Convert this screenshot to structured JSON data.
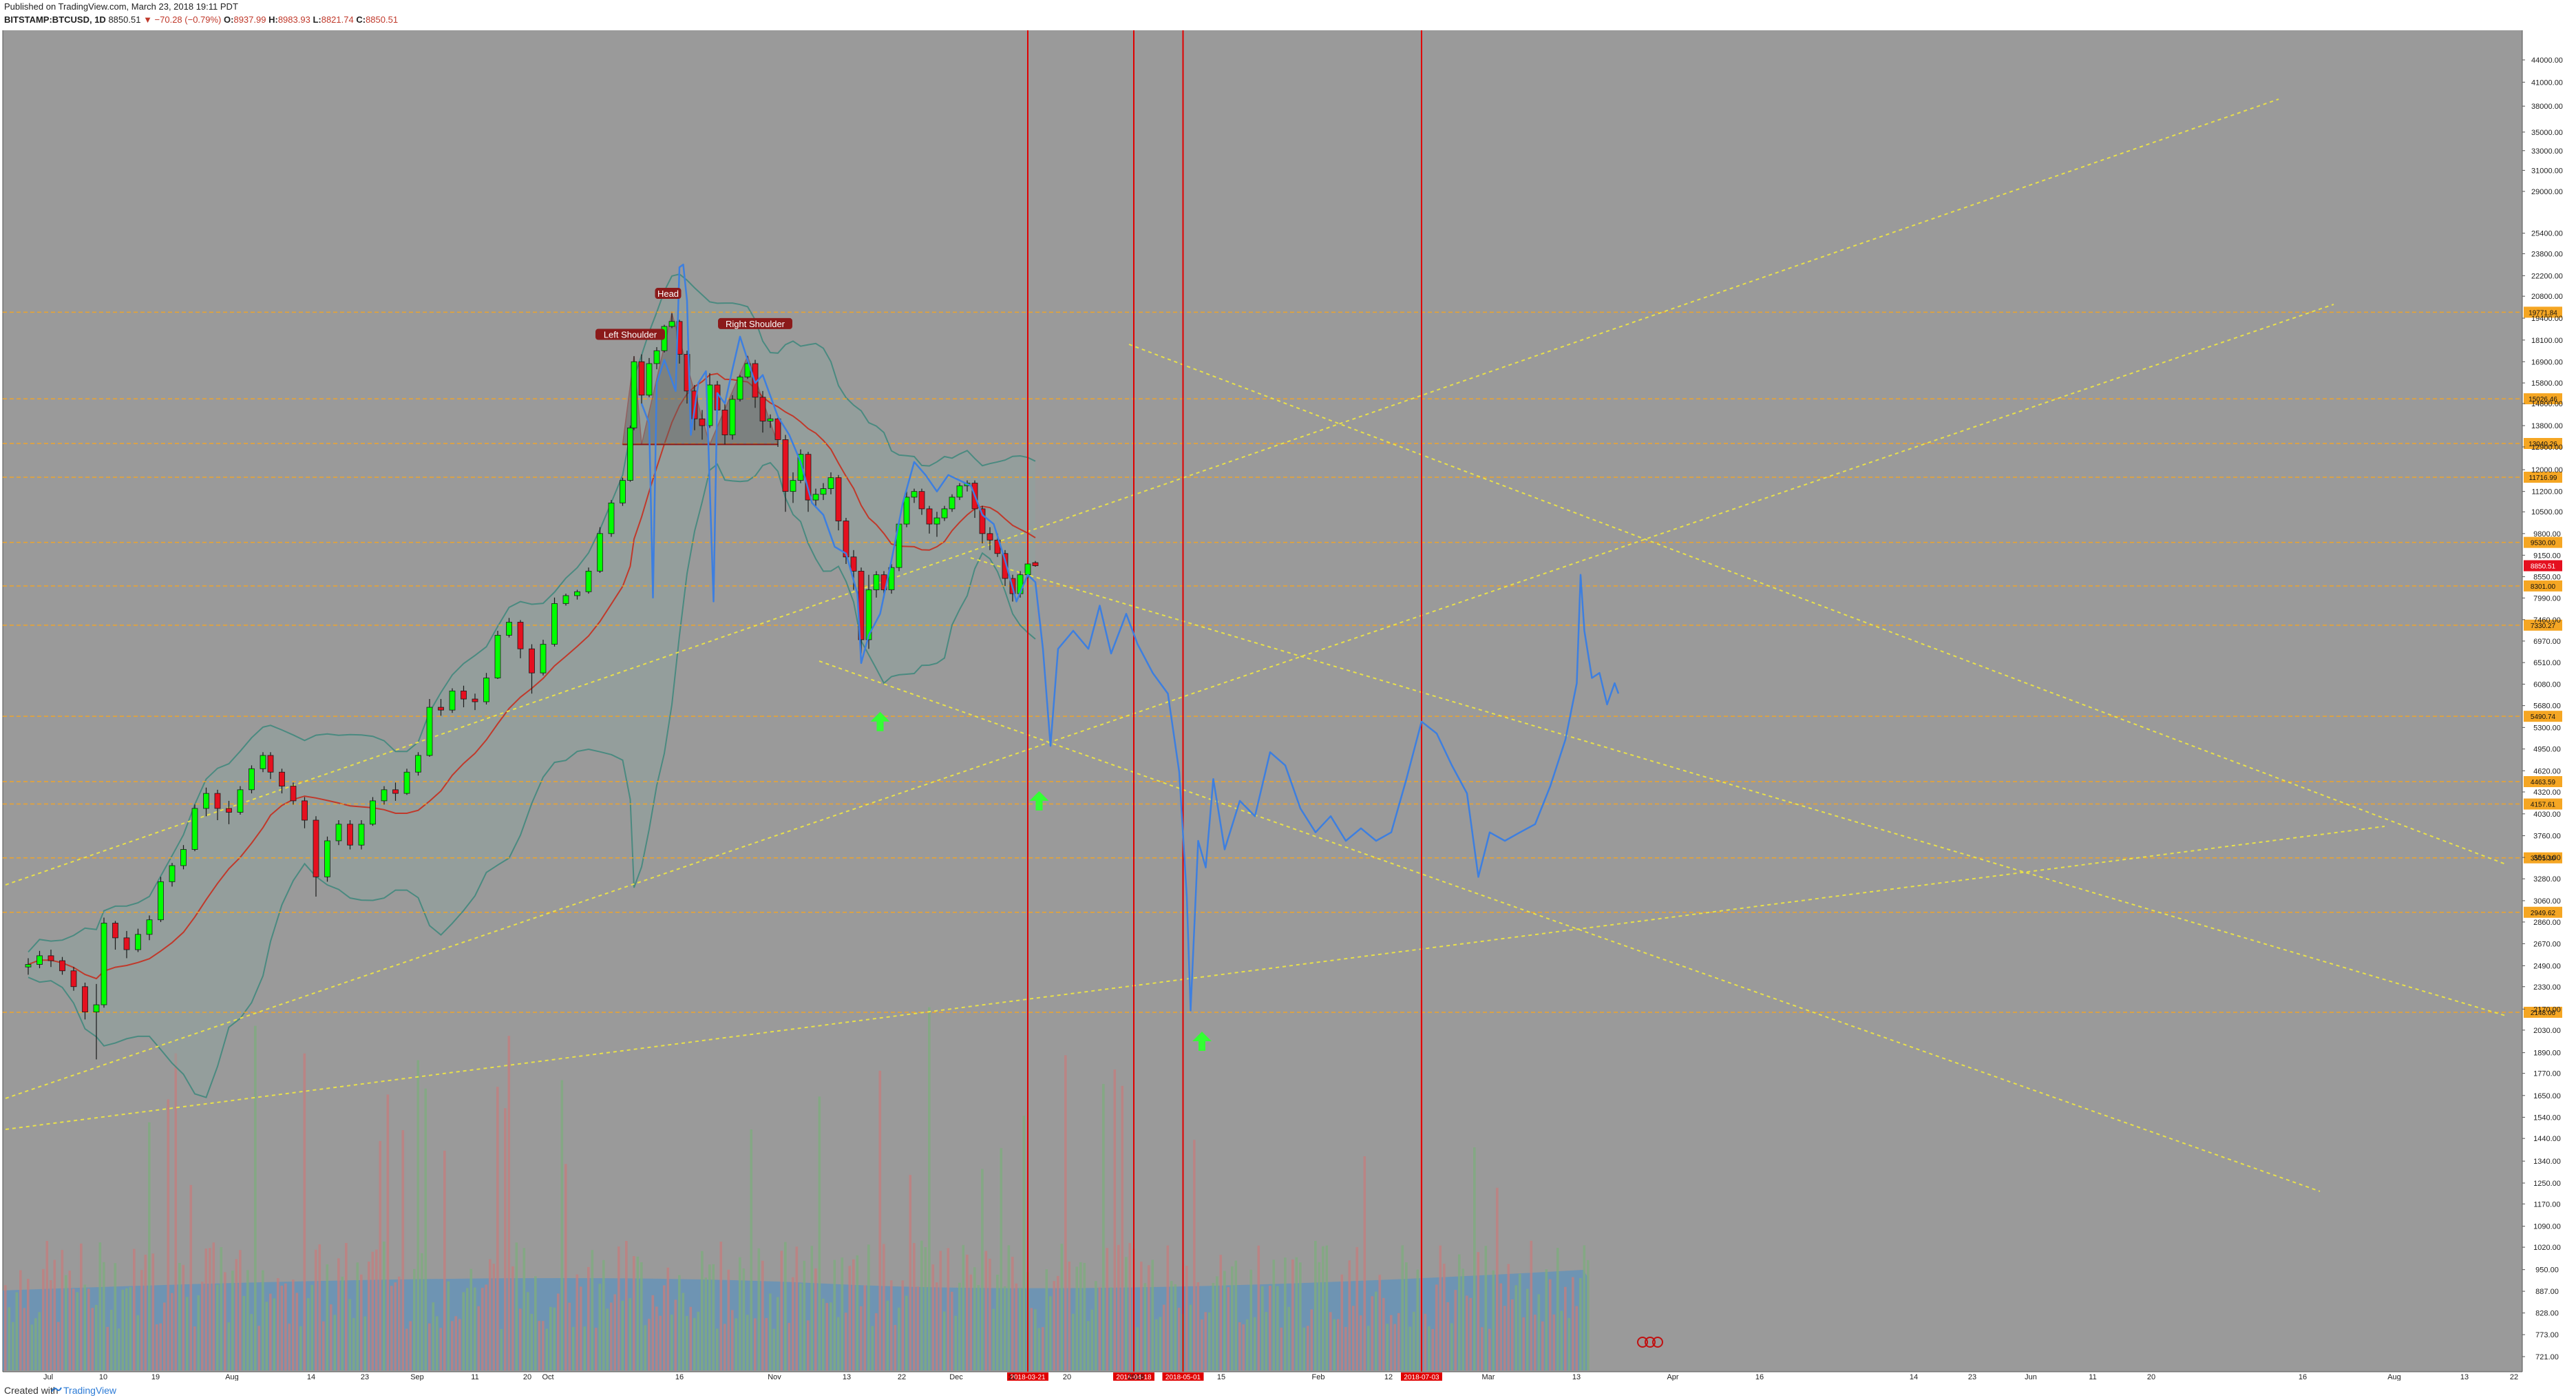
{
  "header": {
    "published": "Published on TradingView.com, March 23, 2018 19:11 PDT",
    "symbol": "BITSTAMP:BTCUSD, 1D",
    "last": "8850.51",
    "change": "▼ −70.28 (−0.79%)",
    "o_label": "O:",
    "o_value": "8937.99",
    "h_label": "H:",
    "h_value": "8983.93",
    "l_label": "L:",
    "l_value": "8821.74",
    "c_label": "C:",
    "c_value": "8850.51"
  },
  "footer": {
    "created_with": "Created with",
    "brand": "TradingView"
  },
  "colors": {
    "plot_bg": "#9a9a9a",
    "up": "#00ff00",
    "down": "#e5101f",
    "projection": "#3d7fe0",
    "horizontal_levels": "#f5a623",
    "trend_lines": "#e8e04a",
    "vertical_lines": "#e00000",
    "bollinger": "#4a8a80",
    "ma": "#c0392b",
    "volume_ma": "#4a90c8"
  },
  "chart_data": {
    "type": "candlestick",
    "y_axis_scale": "log",
    "y_axis_ticks": [
      "44000.00",
      "41000.00",
      "38000.00",
      "35000.00",
      "33000.00",
      "31000.00",
      "29000.00",
      "25400.00",
      "23800.00",
      "22200.00",
      "20800.00",
      "19400.00",
      "18100.00",
      "16900.00",
      "15800.00",
      "14800.00",
      "13800.00",
      "12900.00",
      "12000.00",
      "11200.00",
      "10500.00",
      "9800.00",
      "9150.00",
      "8550.00",
      "7990.00",
      "7460.00",
      "6970.00",
      "6510.00",
      "6080.00",
      "5680.00",
      "5300.00",
      "4950.00",
      "4620.00",
      "4320.00",
      "4030.00",
      "3760.00",
      "3510.00",
      "3280.00",
      "3060.00",
      "2860.00",
      "2670.00",
      "2490.00",
      "2330.00",
      "2170.00",
      "2030.00",
      "1890.00",
      "1770.00",
      "1650.00",
      "1540.00",
      "1440.00",
      "1340.00",
      "1250.00",
      "1170.00",
      "1090.00",
      "1020.00",
      "950.00",
      "887.00",
      "828.00",
      "773.00",
      "721.00"
    ],
    "price_levels": [
      {
        "price": 19771.84,
        "label": "19771.84"
      },
      {
        "price": 15026.46,
        "label": "15026.46"
      },
      {
        "price": 13040.26,
        "label": "13040.26"
      },
      {
        "price": 11716.99,
        "label": "11716.99"
      },
      {
        "price": 9530.0,
        "label": "9530.00"
      },
      {
        "price": 8301.0,
        "label": "8301.00"
      },
      {
        "price": 7330.27,
        "label": "7330.27"
      },
      {
        "price": 5490.74,
        "label": "5490.74"
      },
      {
        "price": 4463.59,
        "label": "4463.59"
      },
      {
        "price": 4157.61,
        "label": "4157.61"
      },
      {
        "price": 3505.3,
        "label": "3505.30"
      },
      {
        "price": 2949.62,
        "label": "2949.62"
      },
      {
        "price": 2148.06,
        "label": "2148.06"
      }
    ],
    "current_price": {
      "price": 8850.51,
      "label": "8850.51"
    },
    "x_axis_ticks": [
      "Jul",
      "10",
      "19",
      "Aug",
      "14",
      "23",
      "Sep",
      "11",
      "20",
      "Oct",
      "16",
      "Nov",
      "13",
      "22",
      "Dec",
      "11",
      "20",
      "2018",
      "15",
      "Feb",
      "12",
      "Mar",
      "13",
      "Apr",
      "16",
      "14",
      "23",
      "Jun",
      "11",
      "20",
      "16",
      "Aug",
      "13",
      "22"
    ],
    "vertical_markers": [
      {
        "date": "2018-03-21",
        "label": "2018-03-21"
      },
      {
        "date": "2018-04-18",
        "label": "2018-04-18"
      },
      {
        "date": "2018-05-01",
        "label": "2018-05-01"
      },
      {
        "date": "2018-07-03",
        "label": "2018-07-03"
      }
    ],
    "annotations": [
      {
        "label": "Left Shoulder",
        "price": 17300
      },
      {
        "label": "Head",
        "price": 19700
      },
      {
        "label": "Right Shoulder",
        "price": 17900
      }
    ],
    "candles": [
      [
        "2017-06-30",
        2480,
        2550,
        2420,
        2500
      ],
      [
        "2017-07-03",
        2500,
        2610,
        2470,
        2570
      ],
      [
        "2017-07-06",
        2570,
        2620,
        2480,
        2530
      ],
      [
        "2017-07-09",
        2530,
        2560,
        2420,
        2450
      ],
      [
        "2017-07-12",
        2450,
        2480,
        2300,
        2330
      ],
      [
        "2017-07-15",
        2330,
        2360,
        2100,
        2150
      ],
      [
        "2017-07-18",
        2150,
        2350,
        1850,
        2200
      ],
      [
        "2017-07-20",
        2200,
        2900,
        2180,
        2850
      ],
      [
        "2017-07-23",
        2850,
        2870,
        2620,
        2720
      ],
      [
        "2017-07-26",
        2720,
        2780,
        2550,
        2620
      ],
      [
        "2017-07-29",
        2620,
        2800,
        2600,
        2750
      ],
      [
        "2017-08-01",
        2750,
        2920,
        2700,
        2880
      ],
      [
        "2017-08-04",
        2880,
        3300,
        2860,
        3250
      ],
      [
        "2017-08-07",
        3250,
        3450,
        3200,
        3420
      ],
      [
        "2017-08-10",
        3420,
        3650,
        3380,
        3600
      ],
      [
        "2017-08-13",
        3600,
        4150,
        3580,
        4100
      ],
      [
        "2017-08-16",
        4100,
        4380,
        4000,
        4300
      ],
      [
        "2017-08-19",
        4300,
        4350,
        3950,
        4100
      ],
      [
        "2017-08-22",
        4100,
        4200,
        3900,
        4050
      ],
      [
        "2017-08-25",
        4050,
        4400,
        4020,
        4350
      ],
      [
        "2017-08-28",
        4350,
        4700,
        4300,
        4650
      ],
      [
        "2017-08-31",
        4650,
        4900,
        4600,
        4850
      ],
      [
        "2017-09-02",
        4850,
        4900,
        4500,
        4600
      ],
      [
        "2017-09-05",
        4600,
        4650,
        4300,
        4400
      ],
      [
        "2017-09-08",
        4400,
        4450,
        4150,
        4200
      ],
      [
        "2017-09-11",
        4200,
        4250,
        3850,
        3950
      ],
      [
        "2017-09-14",
        3950,
        4000,
        3100,
        3300
      ],
      [
        "2017-09-17",
        3300,
        3750,
        3250,
        3700
      ],
      [
        "2017-09-20",
        3700,
        3950,
        3650,
        3900
      ],
      [
        "2017-09-23",
        3900,
        3950,
        3600,
        3650
      ],
      [
        "2017-09-26",
        3650,
        3950,
        3600,
        3900
      ],
      [
        "2017-09-29",
        3900,
        4250,
        3880,
        4200
      ],
      [
        "2017-10-02",
        4200,
        4400,
        4150,
        4350
      ],
      [
        "2017-10-05",
        4350,
        4450,
        4200,
        4300
      ],
      [
        "2017-10-08",
        4300,
        4650,
        4280,
        4600
      ],
      [
        "2017-10-11",
        4600,
        4900,
        4550,
        4850
      ],
      [
        "2017-10-14",
        4850,
        5800,
        4830,
        5650
      ],
      [
        "2017-10-17",
        5650,
        5800,
        5500,
        5600
      ],
      [
        "2017-10-20",
        5600,
        6000,
        5550,
        5950
      ],
      [
        "2017-10-23",
        5950,
        6050,
        5650,
        5800
      ],
      [
        "2017-10-26",
        5800,
        5900,
        5600,
        5750
      ],
      [
        "2017-10-29",
        5750,
        6300,
        5700,
        6200
      ],
      [
        "2017-11-01",
        6200,
        7200,
        6180,
        7100
      ],
      [
        "2017-11-04",
        7100,
        7500,
        7050,
        7400
      ],
      [
        "2017-11-07",
        7400,
        7450,
        6600,
        6800
      ],
      [
        "2017-11-10",
        6800,
        6900,
        5900,
        6300
      ],
      [
        "2017-11-13",
        6300,
        7000,
        6250,
        6900
      ],
      [
        "2017-11-16",
        6900,
        8000,
        6850,
        7850
      ],
      [
        "2017-11-19",
        7850,
        8100,
        7800,
        8050
      ],
      [
        "2017-11-22",
        8050,
        8200,
        7950,
        8150
      ],
      [
        "2017-11-25",
        8150,
        8800,
        8100,
        8700
      ],
      [
        "2017-11-28",
        8700,
        10000,
        8650,
        9800
      ],
      [
        "2017-12-01",
        9800,
        10900,
        9700,
        10800
      ],
      [
        "2017-12-04",
        10800,
        11700,
        10700,
        11600
      ],
      [
        "2017-12-06",
        11600,
        13800,
        11550,
        13700
      ],
      [
        "2017-12-07",
        13700,
        17200,
        13600,
        16900
      ],
      [
        "2017-12-09",
        16900,
        17300,
        14800,
        15200
      ],
      [
        "2017-12-11",
        15200,
        17100,
        15100,
        16800
      ],
      [
        "2017-12-13",
        16800,
        17700,
        16500,
        17500
      ],
      [
        "2017-12-15",
        17500,
        19000,
        17400,
        18900
      ],
      [
        "2017-12-17",
        18900,
        19700,
        18800,
        19200
      ],
      [
        "2017-12-19",
        19200,
        19300,
        16800,
        17300
      ],
      [
        "2017-12-21",
        17300,
        17500,
        14800,
        15400
      ],
      [
        "2017-12-23",
        15400,
        15700,
        13600,
        14100
      ],
      [
        "2017-12-25",
        14100,
        14500,
        13200,
        13800
      ],
      [
        "2017-12-27",
        13800,
        16300,
        13700,
        15700
      ],
      [
        "2017-12-29",
        15700,
        15900,
        14300,
        14500
      ],
      [
        "2017-12-31",
        14500,
        14800,
        13000,
        13400
      ],
      [
        "2018-01-02",
        13400,
        15200,
        13200,
        15000
      ],
      [
        "2018-01-04",
        15000,
        16200,
        14900,
        16100
      ],
      [
        "2018-01-06",
        16100,
        17200,
        16000,
        16800
      ],
      [
        "2018-01-08",
        16800,
        17000,
        14600,
        15100
      ],
      [
        "2018-01-10",
        15100,
        15400,
        13500,
        14000
      ],
      [
        "2018-01-12",
        14000,
        14300,
        13700,
        14100
      ],
      [
        "2018-01-14",
        14100,
        14200,
        12900,
        13200
      ],
      [
        "2018-01-16",
        13200,
        13400,
        10500,
        11200
      ],
      [
        "2018-01-18",
        11200,
        11900,
        10800,
        11600
      ],
      [
        "2018-01-20",
        11600,
        12800,
        11500,
        12600
      ],
      [
        "2018-01-22",
        12600,
        12700,
        10500,
        10900
      ],
      [
        "2018-01-24",
        10900,
        11300,
        10700,
        11100
      ],
      [
        "2018-01-26",
        11100,
        11500,
        10900,
        11300
      ],
      [
        "2018-01-28",
        11300,
        11900,
        11100,
        11700
      ],
      [
        "2018-01-30",
        11700,
        11800,
        9900,
        10200
      ],
      [
        "2018-02-01",
        10200,
        10300,
        8900,
        9100
      ],
      [
        "2018-02-03",
        9100,
        9300,
        8200,
        8700
      ],
      [
        "2018-02-05",
        8700,
        8800,
        6700,
        7000
      ],
      [
        "2018-02-07",
        7000,
        8600,
        6800,
        8200
      ],
      [
        "2018-02-09",
        8200,
        8700,
        8000,
        8600
      ],
      [
        "2018-02-11",
        8600,
        8700,
        8000,
        8200
      ],
      [
        "2018-02-13",
        8200,
        8900,
        8100,
        8800
      ],
      [
        "2018-02-15",
        8800,
        10200,
        8700,
        10100
      ],
      [
        "2018-02-17",
        10100,
        11200,
        10000,
        11000
      ],
      [
        "2018-02-19",
        11000,
        11300,
        10800,
        11200
      ],
      [
        "2018-02-21",
        11200,
        11300,
        10400,
        10600
      ],
      [
        "2018-02-23",
        10600,
        10700,
        9800,
        10100
      ],
      [
        "2018-02-25",
        10100,
        10500,
        9700,
        10300
      ],
      [
        "2018-02-27",
        10300,
        10700,
        10200,
        10600
      ],
      [
        "2018-03-01",
        10600,
        11100,
        10500,
        11000
      ],
      [
        "2018-03-03",
        11000,
        11500,
        10900,
        11400
      ],
      [
        "2018-03-05",
        11400,
        11600,
        11200,
        11500
      ],
      [
        "2018-03-07",
        11500,
        11600,
        10300,
        10600
      ],
      [
        "2018-03-09",
        10600,
        10700,
        9500,
        9800
      ],
      [
        "2018-03-11",
        9800,
        10000,
        9300,
        9600
      ],
      [
        "2018-03-13",
        9600,
        9800,
        9100,
        9200
      ],
      [
        "2018-03-15",
        9200,
        9300,
        8300,
        8500
      ],
      [
        "2018-03-17",
        8500,
        8600,
        7900,
        8100
      ],
      [
        "2018-03-19",
        8100,
        8700,
        8000,
        8600
      ],
      [
        "2018-03-21",
        8600,
        8900,
        8500,
        8900
      ],
      [
        "2018-03-23",
        8937.99,
        8983.93,
        8821.74,
        8850.51
      ]
    ],
    "projection_path": [
      [
        "2017-12-09",
        14800
      ],
      [
        "2017-12-11",
        13900
      ],
      [
        "2017-12-12",
        8000
      ],
      [
        "2017-12-13",
        15800
      ],
      [
        "2017-12-15",
        17000
      ],
      [
        "2017-12-18",
        15400
      ],
      [
        "2017-12-19",
        22800
      ],
      [
        "2017-12-20",
        23000
      ],
      [
        "2017-12-21",
        20500
      ],
      [
        "2017-12-22",
        13400
      ],
      [
        "2017-12-24",
        15800
      ],
      [
        "2017-12-26",
        16400
      ],
      [
        "2017-12-28",
        7900
      ],
      [
        "2017-12-29",
        15300
      ],
      [
        "2017-12-31",
        14800
      ],
      [
        "2018-01-02",
        16500
      ],
      [
        "2018-01-04",
        18300
      ],
      [
        "2018-01-06",
        17000
      ],
      [
        "2018-01-08",
        15800
      ],
      [
        "2018-01-10",
        16200
      ],
      [
        "2018-01-14",
        14200
      ],
      [
        "2018-01-17",
        13400
      ],
      [
        "2018-01-20",
        12300
      ],
      [
        "2018-01-23",
        10800
      ],
      [
        "2018-01-26",
        10400
      ],
      [
        "2018-01-29",
        9400
      ],
      [
        "2018-02-01",
        9200
      ],
      [
        "2018-02-04",
        8100
      ],
      [
        "2018-02-05",
        6500
      ],
      [
        "2018-02-07",
        7100
      ],
      [
        "2018-02-10",
        7600
      ],
      [
        "2018-02-13",
        9000
      ],
      [
        "2018-02-16",
        10800
      ],
      [
        "2018-02-19",
        12300
      ],
      [
        "2018-02-22",
        11800
      ],
      [
        "2018-02-25",
        11200
      ],
      [
        "2018-02-28",
        11800
      ],
      [
        "2018-03-03",
        11600
      ],
      [
        "2018-03-06",
        11400
      ],
      [
        "2018-03-09",
        10400
      ],
      [
        "2018-03-12",
        10100
      ],
      [
        "2018-03-15",
        9000
      ],
      [
        "2018-03-18",
        7900
      ],
      [
        "2018-03-21",
        8600
      ],
      [
        "2018-03-23",
        8400
      ],
      [
        "2018-03-25",
        6800
      ],
      [
        "2018-03-27",
        5000
      ],
      [
        "2018-03-29",
        6800
      ],
      [
        "2018-04-02",
        7200
      ],
      [
        "2018-04-06",
        6800
      ],
      [
        "2018-04-09",
        7800
      ],
      [
        "2018-04-12",
        6700
      ],
      [
        "2018-04-16",
        7600
      ],
      [
        "2018-04-19",
        6900
      ],
      [
        "2018-04-23",
        6300
      ],
      [
        "2018-04-27",
        5900
      ],
      [
        "2018-04-30",
        4600
      ],
      [
        "2018-05-02",
        3100
      ],
      [
        "2018-05-03",
        2160
      ],
      [
        "2018-05-05",
        3700
      ],
      [
        "2018-05-07",
        3400
      ],
      [
        "2018-05-09",
        4500
      ],
      [
        "2018-05-12",
        3600
      ],
      [
        "2018-05-16",
        4200
      ],
      [
        "2018-05-20",
        4000
      ],
      [
        "2018-05-24",
        4900
      ],
      [
        "2018-05-28",
        4700
      ],
      [
        "2018-06-01",
        4100
      ],
      [
        "2018-06-05",
        3800
      ],
      [
        "2018-06-09",
        4000
      ],
      [
        "2018-06-13",
        3700
      ],
      [
        "2018-06-17",
        3850
      ],
      [
        "2018-06-21",
        3700
      ],
      [
        "2018-06-25",
        3800
      ],
      [
        "2018-06-29",
        4500
      ],
      [
        "2018-07-03",
        5400
      ],
      [
        "2018-07-07",
        5200
      ],
      [
        "2018-07-11",
        4700
      ],
      [
        "2018-07-15",
        4300
      ],
      [
        "2018-07-18",
        3300
      ],
      [
        "2018-07-21",
        3800
      ],
      [
        "2018-07-25",
        3700
      ],
      [
        "2018-07-29",
        3800
      ],
      [
        "2018-08-02",
        3900
      ],
      [
        "2018-08-06",
        4400
      ],
      [
        "2018-08-10",
        5100
      ],
      [
        "2018-08-13",
        6100
      ],
      [
        "2018-08-14",
        8600
      ],
      [
        "2018-08-15",
        7200
      ],
      [
        "2018-08-17",
        6200
      ],
      [
        "2018-08-19",
        6300
      ],
      [
        "2018-08-21",
        5700
      ],
      [
        "2018-08-23",
        6100
      ],
      [
        "2018-08-24",
        5900
      ]
    ],
    "volume_units": "relative",
    "volume_ma_level": 0.34
  }
}
